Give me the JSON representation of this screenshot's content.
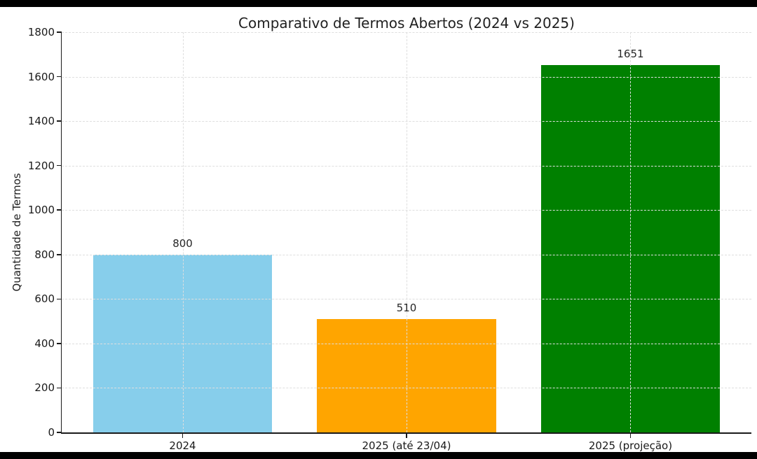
{
  "figure": {
    "background_color": "#ffffff",
    "letterbox_color": "#000000"
  },
  "chart_data": {
    "type": "bar",
    "title": "Comparativo de Termos Abertos (2024 vs 2025)",
    "xlabel": "",
    "ylabel": "Quantidade de Termos",
    "categories": [
      "2024",
      "2025 (até 23/04)",
      "2025 (projeção)"
    ],
    "values": [
      800,
      510,
      1651
    ],
    "value_labels": [
      "800",
      "510",
      "1651"
    ],
    "bar_colors": [
      "#87CEEB",
      "#FFA500",
      "#008000"
    ],
    "ylim": [
      0,
      1800
    ],
    "ytick_step": 200,
    "ytick_labels": [
      "0",
      "200",
      "400",
      "600",
      "800",
      "1000",
      "1200",
      "1400",
      "1600",
      "1800"
    ],
    "grid": "dashed, horizontal and vertical, drawn above bars",
    "grid_color": "#dedede",
    "legend_position": "none",
    "text_color": "#1a1a1a"
  }
}
